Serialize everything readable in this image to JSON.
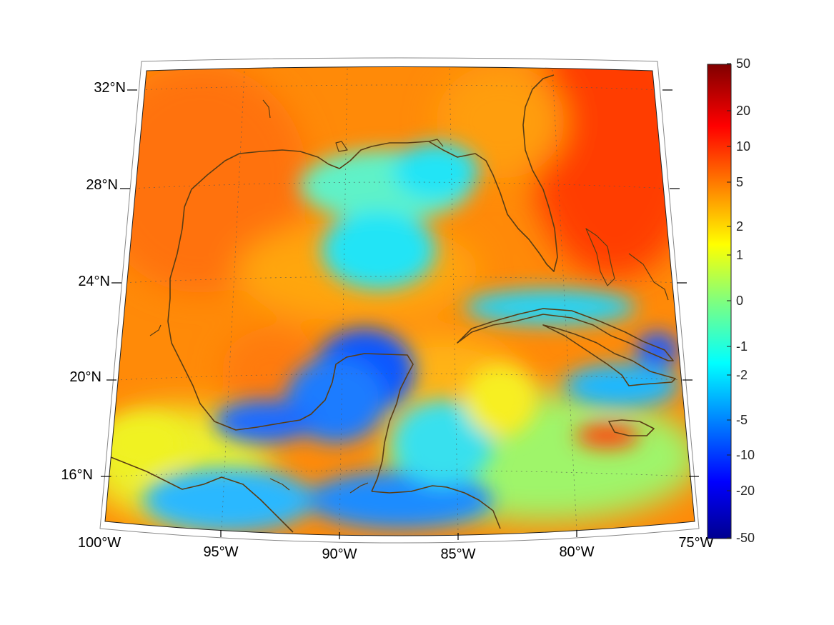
{
  "map": {
    "projection": "conic",
    "lon_range": [
      -100,
      -75
    ],
    "lat_range": [
      14,
      33
    ],
    "region": "Gulf of Mexico and Caribbean",
    "lon_ticks": [
      "100°W",
      "95°W",
      "90°W",
      "85°W",
      "80°W",
      "75°W"
    ],
    "lat_ticks": [
      "16°N",
      "20°N",
      "24°N",
      "28°N",
      "32°N"
    ],
    "grid": true,
    "coastline_color": "#5a3d14"
  },
  "colorbar": {
    "colormap": "jet",
    "scale": "symmetric-log",
    "tick_labels": [
      "50",
      "20",
      "10",
      "5",
      "2",
      "1",
      "0",
      "-1",
      "-2",
      "-5",
      "-10",
      "-20",
      "-50"
    ]
  },
  "field_colors": {
    "land_orange": "#ff7a0a",
    "gulf_orange": "#ff9a08",
    "eastern_red": "#ff3a05",
    "cyan": "#22e4f6",
    "deep_blue": "#0e56ff",
    "yellow": "#f0f224"
  }
}
